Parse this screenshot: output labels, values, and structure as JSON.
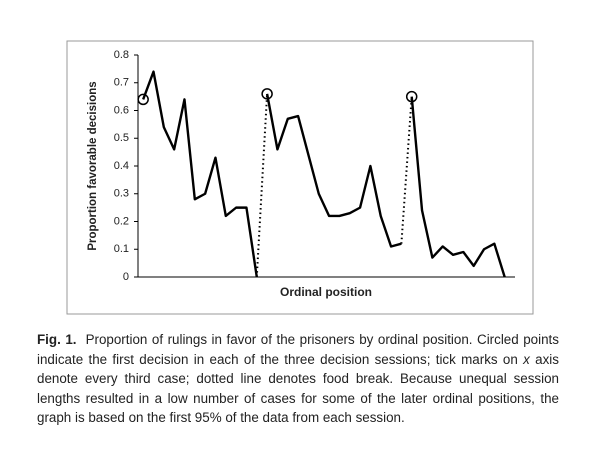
{
  "chart_data": {
    "type": "line",
    "y_label": "Proportion favorable decisions",
    "x_label": "Ordinal position",
    "xlim": [
      0.5,
      37
    ],
    "ylim": [
      0,
      0.8
    ],
    "yticks": [
      0,
      0.1,
      0.2,
      0.3,
      0.4,
      0.5,
      0.6,
      0.7,
      0.8
    ],
    "color": "#000000",
    "series": [
      {
        "x": [
          1,
          2,
          3,
          4,
          5,
          6,
          7,
          8,
          9,
          10,
          11,
          12
        ],
        "values": [
          0.64,
          0.74,
          0.54,
          0.46,
          0.64,
          0.28,
          0.3,
          0.43,
          0.22,
          0.25,
          0.25,
          0.0
        ]
      },
      {
        "x": [
          13,
          14,
          15,
          16,
          17,
          18,
          19,
          20,
          21,
          22,
          23,
          24,
          25,
          26
        ],
        "values": [
          0.66,
          0.46,
          0.57,
          0.58,
          0.44,
          0.3,
          0.22,
          0.22,
          0.23,
          0.25,
          0.4,
          0.22,
          0.11,
          0.12
        ]
      },
      {
        "x": [
          27,
          28,
          29,
          30,
          31,
          32,
          33,
          34,
          35,
          36
        ],
        "values": [
          0.65,
          0.24,
          0.07,
          0.11,
          0.08,
          0.09,
          0.04,
          0.1,
          0.12,
          0.0
        ]
      }
    ],
    "caption": {
      "label": "Fig. 1.",
      "text_1": "Proportion of rulings in favor of the prisoners by ordinal position. Circled points indicate the first decision in each of the three decision sessions; tick marks on ",
      "italic": "x",
      "text_2": " axis denote every third case; dotted line denotes food break. Because unequal session lengths resulted in a low number of cases for some of the later ordinal positions, the graph is based on the first 95% of the data from each session."
    }
  }
}
